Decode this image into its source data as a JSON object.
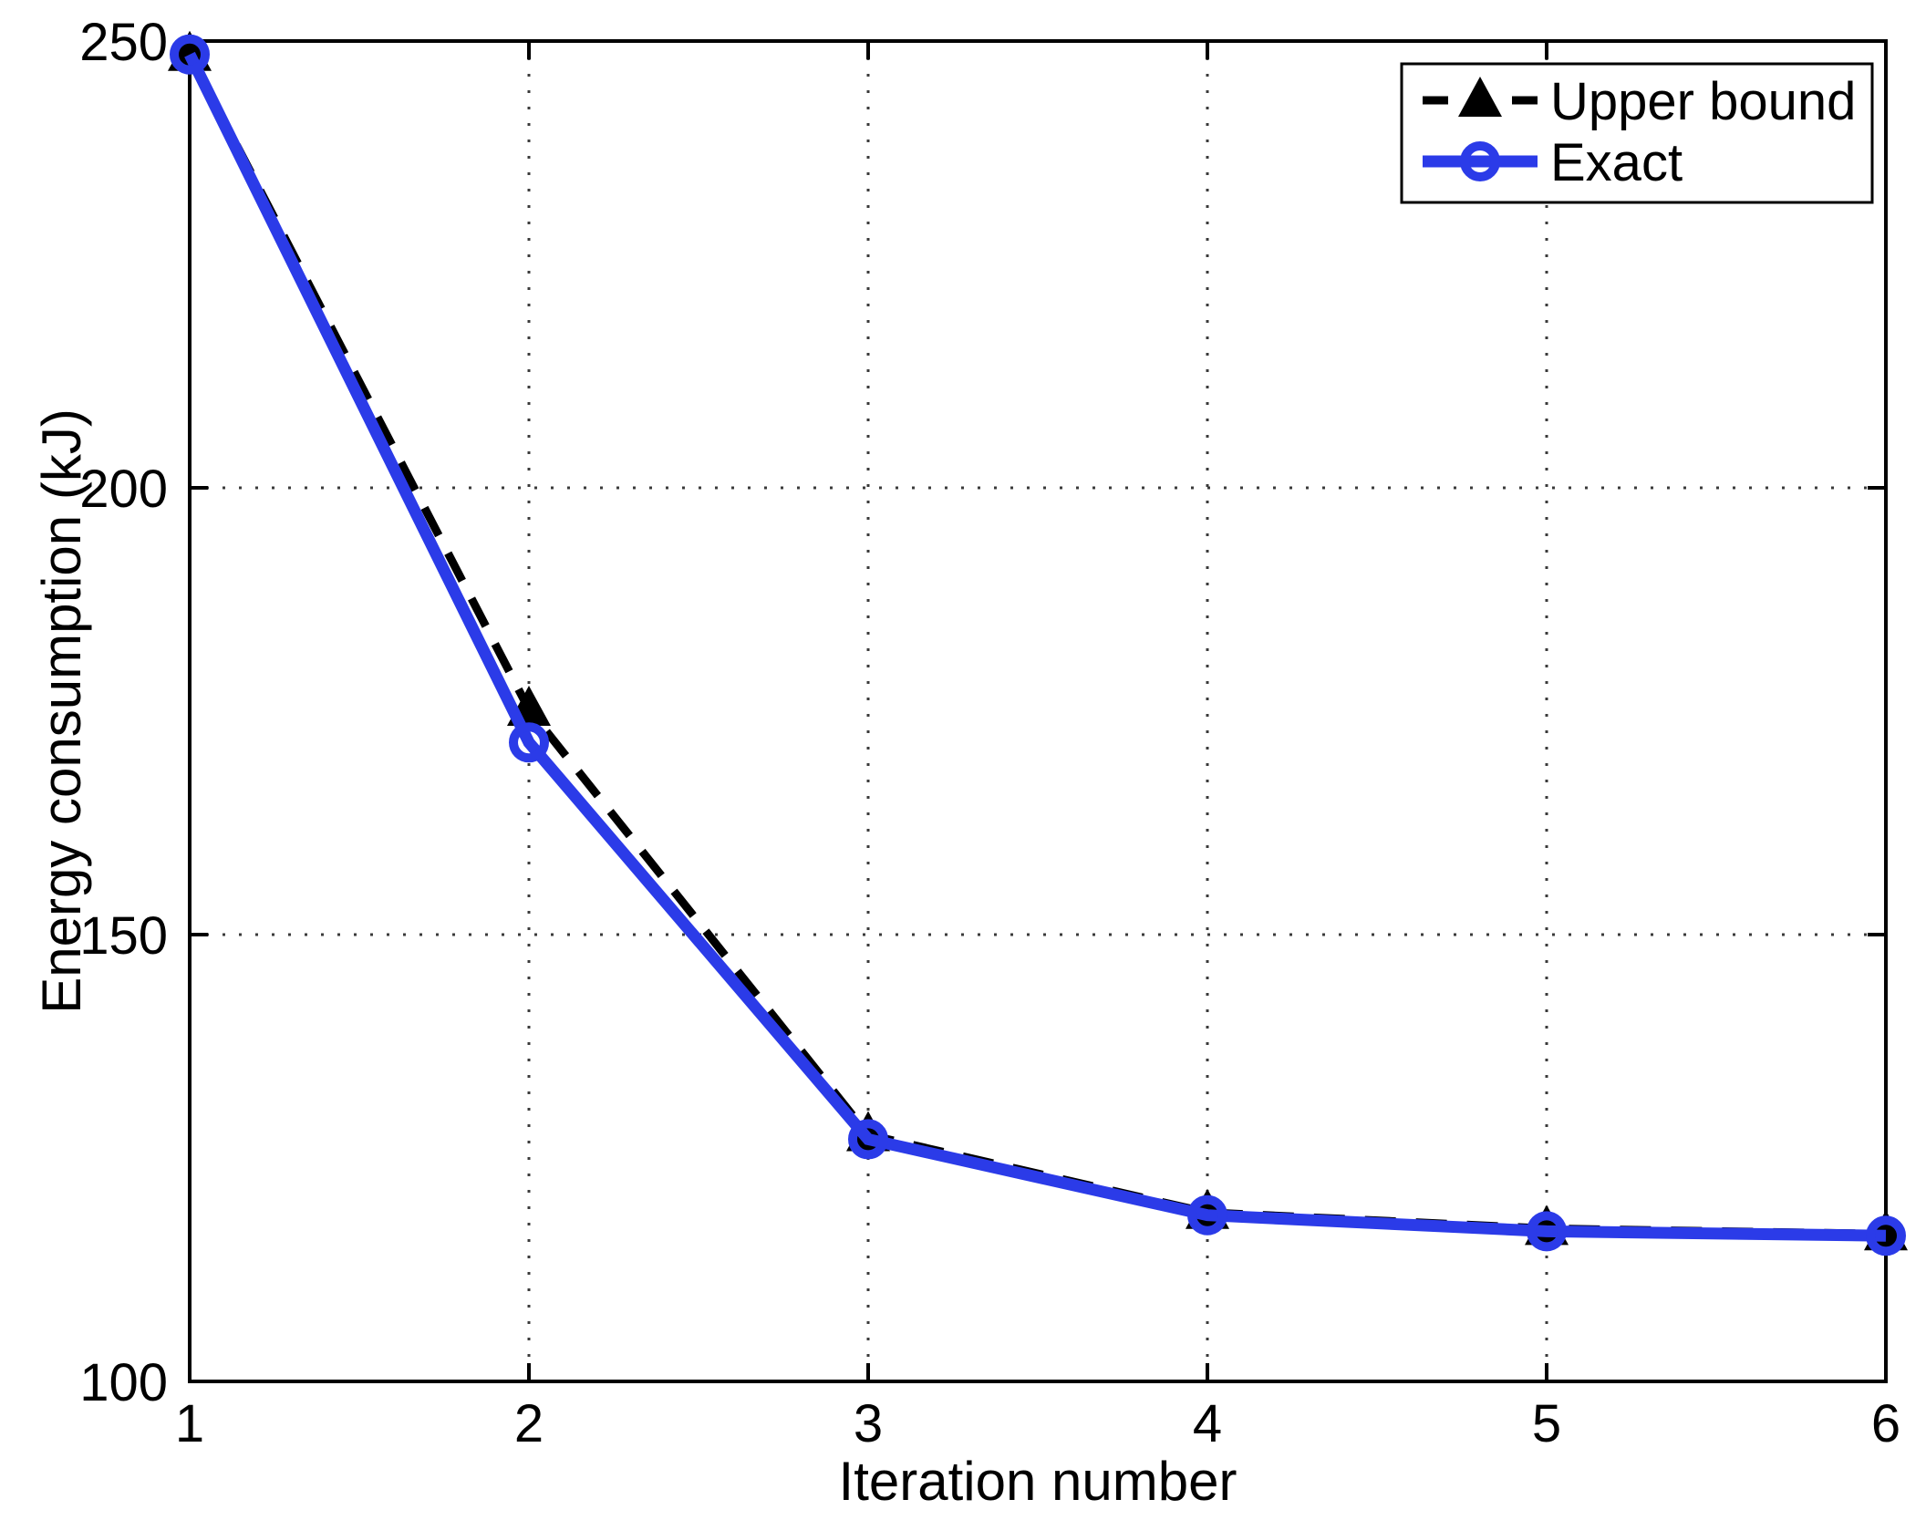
{
  "chart_data": {
    "type": "line",
    "title": "",
    "xlabel": "Iteration number",
    "ylabel": "Energy consumption (kJ)",
    "x": [
      1,
      2,
      3,
      4,
      5,
      6
    ],
    "xlim": [
      1,
      6
    ],
    "ylim": [
      100,
      250
    ],
    "xticks": [
      1,
      2,
      3,
      4,
      5,
      6
    ],
    "yticks": [
      100,
      150,
      200,
      250
    ],
    "grid": "dotted",
    "legend_position": "top-right",
    "series": [
      {
        "name": "Upper bound",
        "values": [
          248.5,
          175.2,
          127.6,
          118.9,
          117.1,
          116.5
        ],
        "color": "#000000",
        "line_style": "dashed",
        "marker": "triangle-up"
      },
      {
        "name": "Exact",
        "values": [
          248.5,
          171.5,
          127.1,
          118.6,
          116.8,
          116.3
        ],
        "color": "#2B3BE8",
        "line_style": "solid",
        "marker": "circle"
      }
    ]
  },
  "colors": {
    "background": "#FFFFFF",
    "axis": "#000000",
    "grid": "#3A3A3A",
    "exact_blue": "#2B3BE8",
    "legend_bg": "#FFFFFF",
    "legend_border": "#000000"
  }
}
